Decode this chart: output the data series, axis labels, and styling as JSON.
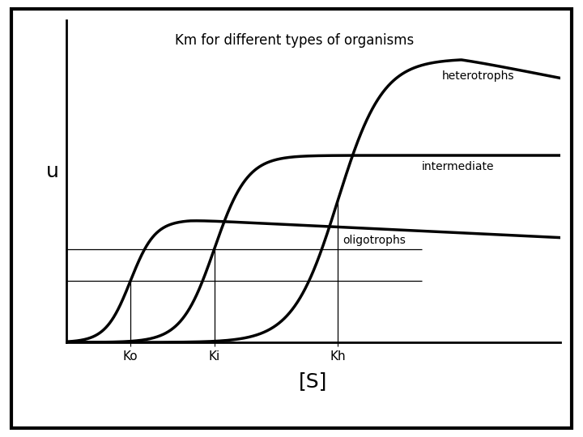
{
  "title": "Km for different types of organisms",
  "xlabel": "[S]",
  "ylabel": "u",
  "background_color": "#ffffff",
  "curve_color": "#000000",
  "Ko": 0.13,
  "Ki": 0.3,
  "Kh": 0.55,
  "umax_oligo": 0.38,
  "umax_inter": 0.58,
  "umax_hetero": 0.88,
  "label_heterotrophs": "heterotrophs",
  "label_intermediate": "intermediate",
  "label_oligotrophs": "oligotrophs",
  "title_fontsize": 12,
  "label_fontsize": 10,
  "axis_label_fontsize": 18,
  "tick_label_fontsize": 11,
  "xmin": 0.0,
  "xmax": 1.0,
  "ymin": 0.0,
  "ymax": 1.0
}
